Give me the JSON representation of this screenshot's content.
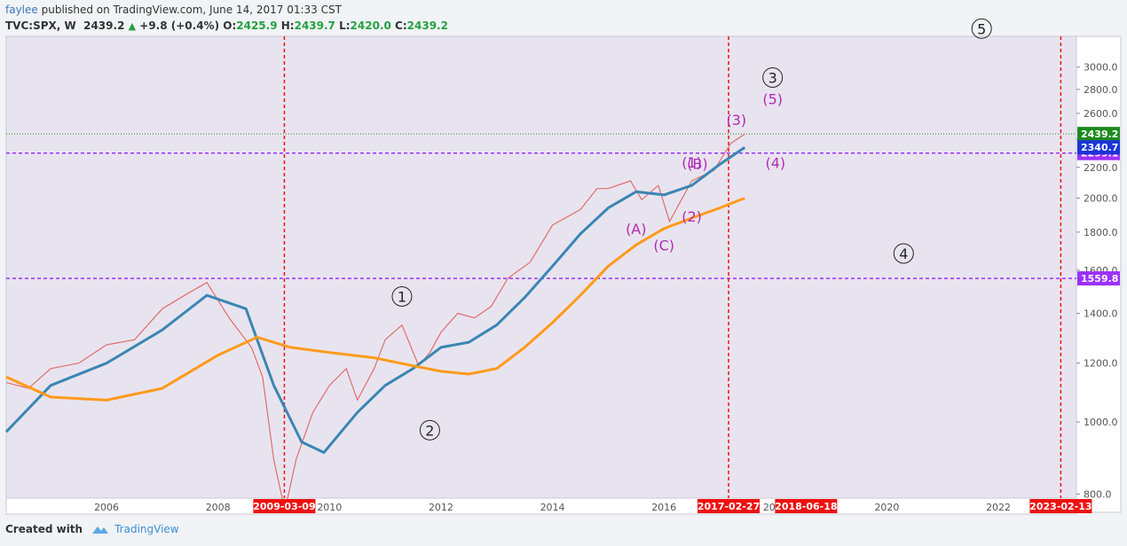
{
  "header": {
    "user": "faylee",
    "published": "published on TradingView.com, June 14, 2017 01:33 CST",
    "symbol": "TVC:SPX, W",
    "last": "2439.2",
    "change": "+9.8 (+0.4%)",
    "o_label": "O:",
    "o": "2425.9",
    "h_label": "H:",
    "h": "2439.7",
    "l_label": "L:",
    "l": "2420.0",
    "c_label": "C:",
    "c": "2439.2"
  },
  "footer": {
    "created": "Created with",
    "brand": "TradingView"
  },
  "colors": {
    "price": "#e06d6d",
    "ma_fast": "#3a86b4",
    "ma_slow": "#ff9a1a",
    "wave_purple": "#b52ab5",
    "marker_red": "#ee1111",
    "hline_purple": "#9b30ff",
    "last_green": "#1e8a1e",
    "plot_bg": "#e8e4ef"
  },
  "chart_data": {
    "type": "line",
    "yscale": "log",
    "xlim": [
      2004.2,
      2023.4
    ],
    "ylim": [
      790,
      3300
    ],
    "x_ticks": [
      "2006",
      "2008",
      "2010",
      "2012",
      "2014",
      "2016",
      "2018",
      "2020",
      "2022"
    ],
    "y_ticks": [
      "800.0",
      "1000.0",
      "1200.0",
      "1400.0",
      "1600.0",
      "1800.0",
      "2000.0",
      "2200.0",
      "2400.0",
      "2600.0",
      "2800.0",
      "3000.0"
    ],
    "series": [
      {
        "key": "price",
        "x": [
          2004.2,
          2004.6,
          2005.0,
          2005.5,
          2006.0,
          2006.5,
          2007.0,
          2007.4,
          2007.8,
          2008.2,
          2008.6,
          2008.8,
          2009.0,
          2009.2,
          2009.4,
          2009.7,
          2010.0,
          2010.3,
          2010.5,
          2010.8,
          2011.0,
          2011.3,
          2011.6,
          2011.8,
          2012.0,
          2012.3,
          2012.6,
          2012.9,
          2013.2,
          2013.6,
          2014.0,
          2014.5,
          2014.8,
          2015.0,
          2015.4,
          2015.6,
          2015.9,
          2016.1,
          2016.5,
          2016.9,
          2017.2,
          2017.45
        ],
        "values": [
          1130,
          1110,
          1180,
          1200,
          1270,
          1290,
          1420,
          1480,
          1540,
          1380,
          1260,
          1150,
          890,
          760,
          890,
          1030,
          1120,
          1180,
          1070,
          1180,
          1290,
          1350,
          1190,
          1240,
          1320,
          1400,
          1380,
          1430,
          1560,
          1640,
          1840,
          1930,
          2060,
          2060,
          2110,
          1990,
          2080,
          1860,
          2110,
          2180,
          2370,
          2439
        ]
      },
      {
        "key": "ma_fast",
        "x": [
          2004.2,
          2005.0,
          2006.0,
          2007.0,
          2007.8,
          2008.5,
          2009.0,
          2009.5,
          2009.9,
          2010.5,
          2011.0,
          2011.5,
          2012.0,
          2012.5,
          2013.0,
          2013.5,
          2014.0,
          2014.5,
          2015.0,
          2015.5,
          2016.0,
          2016.5,
          2017.0,
          2017.45
        ],
        "values": [
          970,
          1120,
          1200,
          1330,
          1480,
          1420,
          1120,
          940,
          910,
          1030,
          1120,
          1180,
          1260,
          1280,
          1350,
          1470,
          1620,
          1790,
          1940,
          2040,
          2020,
          2080,
          2220,
          2340.7
        ]
      },
      {
        "key": "ma_slow",
        "x": [
          2004.2,
          2005.0,
          2006.0,
          2007.0,
          2008.0,
          2008.7,
          2009.3,
          2010.0,
          2010.8,
          2011.5,
          2012.0,
          2012.5,
          2013.0,
          2013.5,
          2014.0,
          2014.5,
          2015.0,
          2015.5,
          2016.0,
          2016.5,
          2017.0,
          2017.45
        ],
        "values": [
          1150,
          1080,
          1070,
          1110,
          1230,
          1300,
          1260,
          1240,
          1220,
          1190,
          1170,
          1160,
          1180,
          1260,
          1360,
          1480,
          1620,
          1730,
          1820,
          1880,
          1940,
          2000
        ]
      }
    ],
    "hlines": [
      {
        "value": 2439.2,
        "label": "2439.2",
        "style": "dotted-green"
      },
      {
        "value": 2299.1,
        "label": "2299.1",
        "style": "dashed-purple"
      },
      {
        "value": 1559.8,
        "label": "1559.8",
        "style": "dashed-purple"
      }
    ],
    "price_tags": [
      {
        "value": 2340.7,
        "label": "2340.7",
        "kind": "ma"
      }
    ],
    "vlines": [
      {
        "x": 2009.19,
        "label": "2009-03-09"
      },
      {
        "x": 2017.16,
        "label": "2017-02-27"
      },
      {
        "x": 2023.12,
        "label": "2023-02-13"
      }
    ],
    "date_tags": [
      {
        "x": 2018.55,
        "label": "2018-06-18"
      }
    ],
    "wave_labels": [
      {
        "text": "3",
        "circled": true,
        "x": 2017.95,
        "y": 2905
      },
      {
        "text": "(5)",
        "x": 2017.95,
        "y": 2720
      },
      {
        "text": "(3)",
        "x": 2017.3,
        "y": 2550
      },
      {
        "text": "(4)",
        "x": 2018.0,
        "y": 2232
      },
      {
        "text": "(B)",
        "x": 2016.6,
        "y": 2226
      },
      {
        "text": "(1)",
        "x": 2016.5,
        "y": 2236
      },
      {
        "text": "(2)",
        "x": 2016.5,
        "y": 1890
      },
      {
        "text": "(A)",
        "x": 2015.5,
        "y": 1820
      },
      {
        "text": "(C)",
        "x": 2016.0,
        "y": 1730
      },
      {
        "text": "1",
        "circled": true,
        "x": 2011.3,
        "y": 1475
      },
      {
        "text": "2",
        "circled": true,
        "x": 2011.8,
        "y": 975
      },
      {
        "text": "4",
        "circled": true,
        "x": 2020.3,
        "y": 1685
      },
      {
        "text": "5",
        "circled": true,
        "x": 2021.7,
        "y": 3380
      }
    ]
  }
}
